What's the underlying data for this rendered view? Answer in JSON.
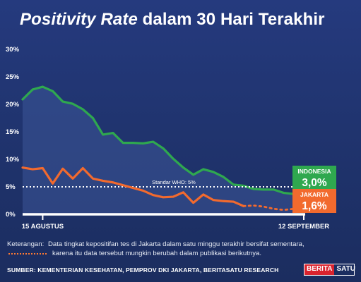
{
  "title": {
    "italic_part": "Positivity Rate",
    "regular_part": " dalam 30 Hari Terakhir"
  },
  "chart_data": {
    "type": "line",
    "title": "Positivity Rate dalam 30 Hari Terakhir",
    "ylim": [
      0,
      30
    ],
    "y_ticks": [
      "0%",
      "5%",
      "10%",
      "15%",
      "20%",
      "25%",
      "30%"
    ],
    "x_tick_labels": [
      "15 AGUSTUS",
      "12 SEPTEMBER"
    ],
    "grid": false,
    "series": [
      {
        "name": "INDONESIA",
        "color": "#2fa84f",
        "values": [
          20.9,
          22.7,
          23.2,
          22.4,
          20.5,
          20.1,
          19.1,
          17.5,
          14.5,
          14.8,
          13.0,
          13.0,
          12.9,
          13.2,
          12.0,
          10.1,
          8.5,
          7.2,
          8.2,
          7.7,
          6.8,
          5.4,
          5.2,
          4.6,
          4.5,
          4.5,
          3.9,
          3.7,
          3.0
        ],
        "end_label": "INDONESIA",
        "end_value_label": "3,0%"
      },
      {
        "name": "JAKARTA",
        "color": "#f26a2e",
        "values": [
          8.5,
          8.2,
          8.4,
          5.6,
          8.3,
          6.5,
          8.4,
          6.5,
          6.1,
          5.8,
          5.3,
          4.8,
          4.3,
          3.5,
          3.1,
          3.2,
          4.0,
          2.1,
          3.6,
          2.6,
          2.4,
          2.3,
          1.5,
          1.6,
          1.4,
          1.0,
          0.8,
          1.0,
          1.6
        ],
        "provisional_from_index": 22,
        "end_label": "JAKARTA",
        "end_value_label": "1,6%"
      }
    ],
    "reference_line": {
      "label": "Standar WHO: 5%",
      "value": 5
    }
  },
  "note": {
    "key_label": "Keterangan:",
    "line1": "Data tingkat kepositifan tes di Jakarta dalam satu minggu terakhir bersifat sementara,",
    "line2": "karena itu data tersebut mungkin berubah dalam publikasi berikutnya."
  },
  "source": "SUMBER: KEMENTERIAN KESEHATAN, PEMPROV DKI JAKARTA, BERITASATU RESEARCH",
  "logo": {
    "part1": "BERITA",
    "part2": "SATU"
  },
  "colors": {
    "background": "#20346f",
    "indonesia": "#2fa84f",
    "jakarta": "#f26a2e"
  }
}
